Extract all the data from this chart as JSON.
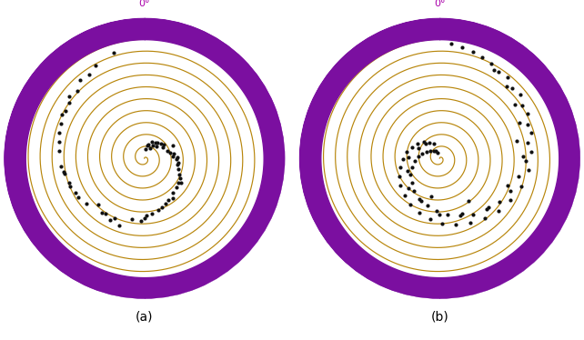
{
  "fig_width": 6.42,
  "fig_height": 3.74,
  "background_color": "#ffffff",
  "outer_ring_color": "#7B0FA0",
  "spiral_color": "#B8860B",
  "spiral_linewidth": 0.85,
  "dot_color": "#111111",
  "dot_size": 3,
  "zero_label_color": "#AA00AA",
  "zero_label_fontsize": 8,
  "subplot_label_fontsize": 10,
  "n_spiral_turns": 10,
  "panel_a_label": "(a)",
  "panel_b_label": "(b)",
  "r_inner": 1.0,
  "r_outer": 1.18,
  "panel_a_theta": [
    0.52,
    0.78,
    1.05,
    1.26,
    1.51,
    1.76,
    2.01,
    2.2,
    2.45,
    2.7,
    2.88,
    3.1,
    3.35,
    3.6,
    3.8,
    4.05,
    4.25,
    4.52,
    4.8,
    5.0,
    5.2,
    5.4,
    5.6,
    5.8,
    6.0,
    0.1,
    0.3,
    3.92,
    1.35,
    2.62,
    4.4,
    0.65,
    1.88,
    3.14,
    5.1,
    0.95,
    2.3,
    4.62,
    1.15,
    3.5,
    5.5,
    0.42,
    2.08,
    4.18,
    1.6,
    3.2,
    5.35,
    0.85,
    2.52,
    4.35,
    1.4,
    3.75,
    0.22,
    2.8,
    4.9,
    1.7,
    3.0,
    5.7,
    0.72,
    2.15,
    4.55,
    1.55,
    3.65,
    5.25,
    0.58
  ],
  "panel_a_r": [
    0.1,
    0.14,
    0.18,
    0.2,
    0.24,
    0.28,
    0.32,
    0.35,
    0.38,
    0.42,
    0.45,
    0.48,
    0.52,
    0.56,
    0.58,
    0.62,
    0.65,
    0.68,
    0.72,
    0.75,
    0.78,
    0.82,
    0.85,
    0.88,
    0.92,
    0.08,
    0.12,
    0.55,
    0.22,
    0.4,
    0.66,
    0.16,
    0.3,
    0.5,
    0.76,
    0.2,
    0.36,
    0.7,
    0.26,
    0.6,
    0.8,
    0.15,
    0.34,
    0.64,
    0.27,
    0.53,
    0.79,
    0.19,
    0.41,
    0.67,
    0.25,
    0.57,
    0.11,
    0.44,
    0.73,
    0.29,
    0.47,
    0.84,
    0.17,
    0.37,
    0.69,
    0.28,
    0.59,
    0.77,
    0.13
  ],
  "panel_b_theta": [
    0.1,
    0.3,
    0.5,
    0.7,
    0.9,
    1.1,
    1.3,
    1.5,
    1.7,
    1.9,
    2.1,
    2.3,
    2.5,
    2.7,
    2.9,
    3.1,
    3.3,
    3.5,
    3.7,
    3.9,
    4.1,
    4.3,
    4.5,
    4.7,
    4.9,
    5.1,
    5.3,
    5.5,
    5.7,
    5.9,
    0.2,
    0.6,
    1.0,
    1.4,
    1.8,
    2.2,
    2.6,
    3.0,
    3.4,
    3.8,
    4.2,
    4.6,
    5.0,
    5.4,
    5.8,
    0.4,
    0.8,
    1.2,
    1.6,
    2.0,
    2.4,
    2.8,
    3.2,
    3.6,
    4.0,
    4.4,
    4.8,
    5.2,
    5.6,
    6.0,
    0.55,
    1.15,
    1.95,
    2.75,
    3.55,
    4.35,
    5.15,
    0.75,
    1.55,
    2.35,
    3.15,
    3.95,
    4.75,
    5.55,
    0.95,
    1.35,
    2.55,
    3.35
  ],
  "panel_b_r": [
    0.97,
    0.94,
    0.91,
    0.89,
    0.86,
    0.83,
    0.8,
    0.77,
    0.75,
    0.72,
    0.69,
    0.66,
    0.63,
    0.6,
    0.57,
    0.55,
    0.52,
    0.49,
    0.46,
    0.43,
    0.4,
    0.37,
    0.34,
    0.31,
    0.28,
    0.25,
    0.22,
    0.19,
    0.16,
    0.13,
    0.95,
    0.88,
    0.82,
    0.75,
    0.68,
    0.62,
    0.55,
    0.48,
    0.41,
    0.35,
    0.28,
    0.21,
    0.15,
    0.1,
    0.07,
    0.92,
    0.85,
    0.79,
    0.72,
    0.65,
    0.58,
    0.51,
    0.44,
    0.38,
    0.31,
    0.24,
    0.18,
    0.12,
    0.08,
    0.05,
    0.87,
    0.73,
    0.61,
    0.5,
    0.39,
    0.29,
    0.2,
    0.83,
    0.7,
    0.58,
    0.47,
    0.36,
    0.26,
    0.17,
    0.78,
    0.66,
    0.43,
    0.33
  ]
}
